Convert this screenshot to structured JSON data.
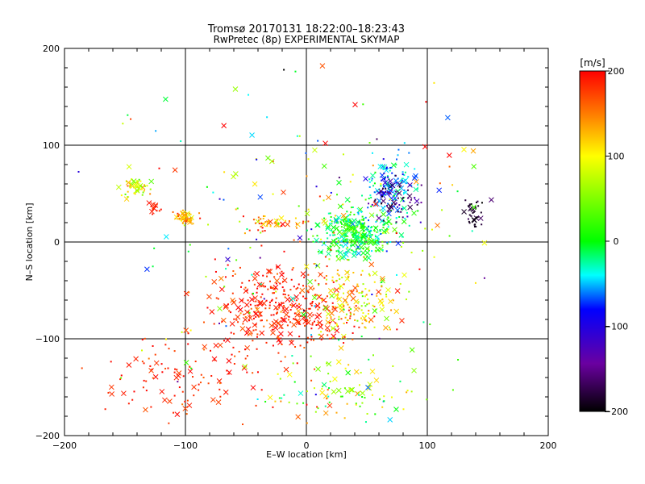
{
  "chart_data": {
    "type": "scatter",
    "title": "Tromsø 20170131 18:22:00–18:23:43",
    "subtitle": "RwPretec (8p) EXPERIMENTAL SKYMAP",
    "xlabel": "E–W location [km]",
    "ylabel": "N–S location [km]",
    "xlim": [
      -200,
      200
    ],
    "ylim": [
      -200,
      200
    ],
    "xticks": [
      -200,
      -100,
      0,
      100,
      200
    ],
    "yticks": [
      -200,
      -100,
      0,
      100,
      200
    ],
    "xtick_labels": [
      "−200",
      "−100",
      "0",
      "100",
      "200"
    ],
    "ytick_labels": [
      "−200",
      "−100",
      "0",
      "100",
      "200"
    ],
    "grid": true,
    "marker_types": [
      "cross",
      "dot"
    ],
    "colorbar": {
      "label": "[m/s]",
      "range": [
        -200,
        200
      ],
      "ticks": [
        200,
        100,
        0,
        -100,
        -200
      ],
      "tick_labels": [
        "200",
        "100",
        "0",
        "−100",
        "−200"
      ],
      "colormap": [
        "#000000",
        "#6a00a0",
        "#0000ff",
        "#00ffff",
        "#00ff00",
        "#ffff00",
        "#ff8000",
        "#ff0000"
      ]
    },
    "clusters": [
      {
        "x": -20,
        "y": -70,
        "sx": 45,
        "sy": 32,
        "n": 360,
        "v": 185,
        "dv": 25
      },
      {
        "x": 40,
        "y": -60,
        "sx": 25,
        "sy": 25,
        "n": 150,
        "v": 110,
        "dv": 50
      },
      {
        "x": 40,
        "y": 10,
        "sx": 22,
        "sy": 18,
        "n": 340,
        "v": 0,
        "dv": 45
      },
      {
        "x": 70,
        "y": 60,
        "sx": 16,
        "sy": 22,
        "n": 130,
        "v": -50,
        "dv": 40
      },
      {
        "x": 75,
        "y": 45,
        "sx": 14,
        "sy": 14,
        "n": 60,
        "v": -150,
        "dv": 40
      },
      {
        "x": -100,
        "y": 25,
        "sx": 6,
        "sy": 5,
        "n": 55,
        "v": 130,
        "dv": 40
      },
      {
        "x": -140,
        "y": 55,
        "sx": 10,
        "sy": 7,
        "n": 55,
        "v": 80,
        "dv": 40
      },
      {
        "x": -125,
        "y": 35,
        "sx": 4,
        "sy": 4,
        "n": 15,
        "v": 190,
        "dv": 10
      },
      {
        "x": 138,
        "y": 30,
        "sx": 6,
        "sy": 10,
        "n": 35,
        "v": -185,
        "dv": 15
      },
      {
        "x": -30,
        "y": 20,
        "sx": 20,
        "sy": 6,
        "n": 50,
        "v": 150,
        "dv": 50
      },
      {
        "x": -100,
        "y": -140,
        "sx": 55,
        "sy": 30,
        "n": 110,
        "v": 185,
        "dv": 20
      },
      {
        "x": 30,
        "y": -150,
        "sx": 40,
        "sy": 25,
        "n": 90,
        "v": 60,
        "dv": 80
      },
      {
        "x": 0,
        "y": 0,
        "sx": 120,
        "sy": 110,
        "n": 230,
        "v": 60,
        "dv": 140
      }
    ]
  }
}
